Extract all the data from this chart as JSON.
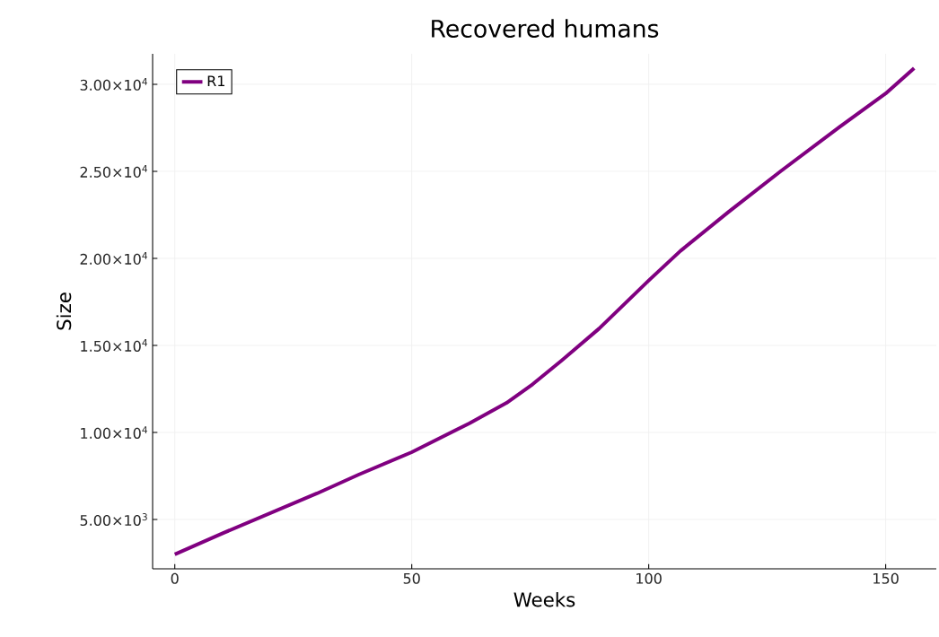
{
  "chart_data": {
    "type": "line",
    "title": "Recovered humans",
    "xlabel": "Weeks",
    "ylabel": "Size",
    "xlim": [
      -4.68,
      160.68
    ],
    "ylim": [
      2170,
      31750
    ],
    "xticks": [
      0,
      50,
      100,
      150
    ],
    "yticks": [
      {
        "value": 5000,
        "label": "5.00×10$^{3}$"
      },
      {
        "value": 10000,
        "label": "1.00×10$^{4}$"
      },
      {
        "value": 15000,
        "label": "1.50×10$^{4}$"
      },
      {
        "value": 20000,
        "label": "2.00×10$^{4}$"
      },
      {
        "value": 25000,
        "label": "2.50×10$^{4}$"
      },
      {
        "value": 30000,
        "label": "3.00×10$^{4}$"
      }
    ],
    "grid": true,
    "legend": "top left",
    "marker": "none",
    "line_style": "solid",
    "series": [
      {
        "name": "R1",
        "color": "#800080",
        "x": [
          0,
          10,
          20,
          30,
          38.8,
          50,
          62.2,
          70,
          75.5,
          81.7,
          89.5,
          100,
          106.7,
          116.8,
          127.8,
          140.3,
          150,
          156
        ],
        "values": [
          3000,
          4200,
          5350,
          6500,
          7580,
          8870,
          10530,
          11700,
          12770,
          14150,
          15960,
          18730,
          20430,
          22660,
          25000,
          27560,
          29470,
          30920
        ]
      }
    ]
  }
}
